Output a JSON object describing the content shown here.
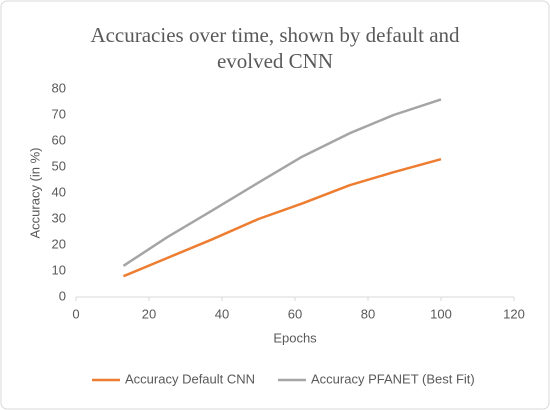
{
  "chart_data": {
    "type": "line",
    "title": "Accuracies over time, shown by default and evolved CNN",
    "x_label": "Epochs",
    "y_label": "Accuracy (in %)",
    "x": [
      13,
      25,
      37,
      50,
      62,
      75,
      87,
      100
    ],
    "series": [
      {
        "name": "Accuracy Default CNN",
        "color": "#ed7d31",
        "values": [
          8,
          15,
          22,
          30,
          36,
          43,
          48,
          53
        ]
      },
      {
        "name": "Accuracy PFANET (Best Fit)",
        "color": "#a5a5a5",
        "values": [
          12,
          23,
          33,
          44,
          54,
          63,
          70,
          76
        ]
      }
    ],
    "xlim": [
      0,
      120
    ],
    "xticks": [
      0,
      20,
      40,
      60,
      80,
      100,
      120
    ],
    "ylim": [
      0,
      80
    ],
    "yticks": [
      0,
      10,
      20,
      30,
      40,
      50,
      60,
      70,
      80
    ],
    "grid": false,
    "legend": "bottom"
  }
}
